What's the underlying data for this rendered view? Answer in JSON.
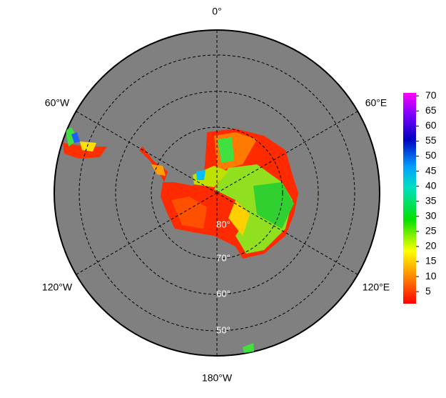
{
  "map": {
    "meridian_labels": [
      "0°",
      "60°E",
      "120°E",
      "180°W",
      "120°W",
      "60°W"
    ],
    "latitude_labels": [
      "80°",
      "70°",
      "60°",
      "50°"
    ],
    "colorbar": {
      "range": [
        1,
        71
      ],
      "ticks": [
        5,
        10,
        15,
        20,
        25,
        30,
        35,
        40,
        45,
        50,
        55,
        60,
        65,
        70
      ]
    }
  }
}
